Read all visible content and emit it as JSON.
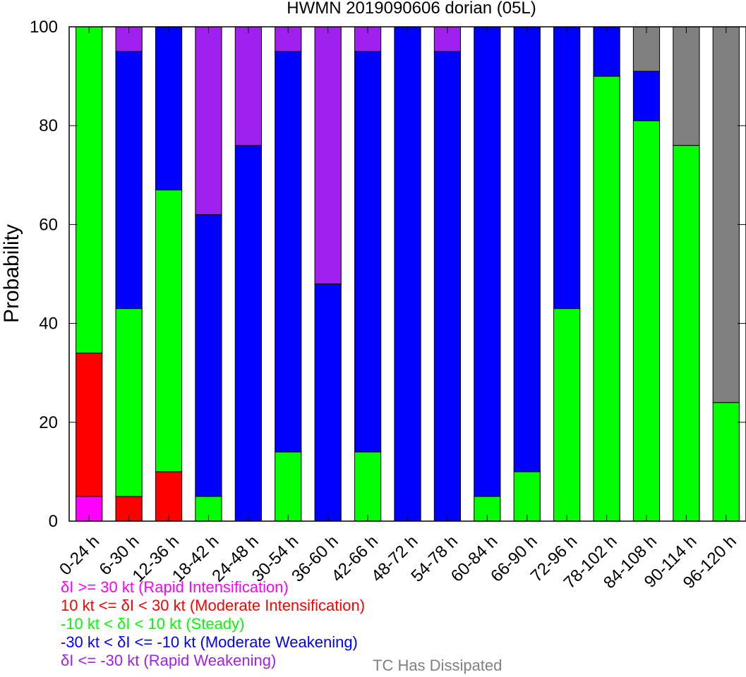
{
  "chart_data": {
    "type": "bar",
    "stacked": true,
    "title": "HWMN 2019090606 dorian (05L)",
    "xlabel": "",
    "ylabel": "Probability",
    "ylim": [
      0,
      100
    ],
    "yticks": [
      0,
      20,
      40,
      60,
      80,
      100
    ],
    "grid": false,
    "categories": [
      "0-24 h",
      "6-30 h",
      "12-36 h",
      "18-42 h",
      "24-48 h",
      "30-54 h",
      "36-60 h",
      "42-66 h",
      "48-72 h",
      "54-78 h",
      "60-84 h",
      "66-90 h",
      "72-96 h",
      "78-102 h",
      "84-108 h",
      "90-114 h",
      "96-120 h"
    ],
    "series": [
      {
        "name": "δI >= 30 kt (Rapid Intensification)",
        "color": "#ff00ff",
        "values": [
          5,
          0,
          0,
          0,
          0,
          0,
          0,
          0,
          0,
          0,
          0,
          0,
          0,
          0,
          0,
          0,
          0
        ]
      },
      {
        "name": "10 kt <= δI < 30 kt (Moderate Intensification)",
        "color": "#ff0000",
        "values": [
          29,
          5,
          10,
          0,
          0,
          0,
          0,
          0,
          0,
          0,
          0,
          0,
          0,
          0,
          0,
          0,
          0
        ]
      },
      {
        "name": "-10 kt < δI < 10 kt (Steady)",
        "color": "#00ff00",
        "values": [
          66,
          38,
          57,
          5,
          0,
          14,
          0,
          14,
          0,
          0,
          5,
          10,
          43,
          90,
          81,
          76,
          24
        ]
      },
      {
        "name": "-30 kt < δI <= -10 kt (Moderate Weakening)",
        "color": "#0000ff",
        "values": [
          0,
          52,
          33,
          57,
          76,
          81,
          48,
          81,
          100,
          95,
          95,
          90,
          57,
          10,
          10,
          0,
          0
        ]
      },
      {
        "name": "δI <= -30 kt (Rapid Weakening)",
        "color": "#a020f0",
        "values": [
          0,
          5,
          0,
          38,
          24,
          5,
          52,
          5,
          0,
          5,
          0,
          0,
          0,
          0,
          0,
          0,
          0
        ]
      },
      {
        "name": "TC Has Dissipated",
        "color": "#808080",
        "values": [
          0,
          0,
          0,
          0,
          0,
          0,
          0,
          0,
          0,
          0,
          0,
          0,
          0,
          0,
          9,
          24,
          76
        ]
      }
    ]
  }
}
